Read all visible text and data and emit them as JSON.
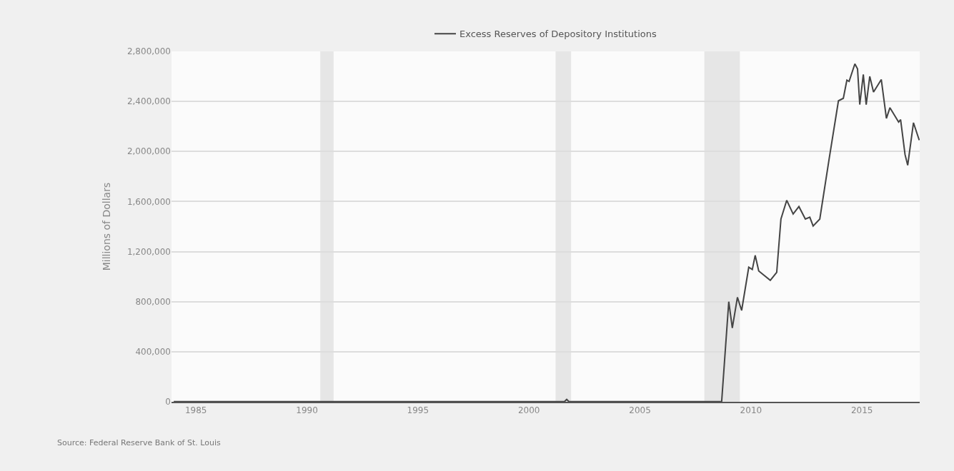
{
  "chart_data": {
    "type": "line",
    "ylabel": "Millions of Dollars",
    "annotations": [
      "Source: Federal Reserve Bank of St. Louis"
    ],
    "series": [
      {
        "name": "Excess Reserves of Depository Institutions",
        "color": "#444444",
        "x": [
          1984.0,
          1990.0,
          1995.0,
          2001.6,
          2001.7,
          2001.8,
          2005.0,
          2008.6,
          2008.68,
          2009.0,
          2009.16,
          2009.39,
          2009.58,
          2009.9,
          2010.06,
          2010.19,
          2010.35,
          2010.87,
          2011.16,
          2011.35,
          2011.61,
          2011.9,
          2012.16,
          2012.45,
          2012.65,
          2012.8,
          2013.1,
          2013.52,
          2013.94,
          2014.16,
          2014.32,
          2014.42,
          2014.68,
          2014.8,
          2014.9,
          2015.06,
          2015.19,
          2015.35,
          2015.52,
          2015.87,
          2016.1,
          2016.26,
          2016.65,
          2016.74,
          2016.94,
          2017.06,
          2017.32,
          2017.58
        ],
        "values": [
          1000,
          1000,
          1000,
          1500,
          19000,
          1500,
          1500,
          2000,
          2000,
          800000,
          590000,
          835000,
          730000,
          1075000,
          1057000,
          1170000,
          1045000,
          970000,
          1035000,
          1460000,
          1610000,
          1500000,
          1560000,
          1460000,
          1475000,
          1405000,
          1460000,
          1940000,
          2405000,
          2425000,
          2570000,
          2560000,
          2700000,
          2660000,
          2375000,
          2615000,
          2375000,
          2600000,
          2475000,
          2575000,
          2265000,
          2350000,
          2235000,
          2255000,
          1975000,
          1890000,
          2230000,
          2090000
        ]
      }
    ],
    "xlim": [
      1983.9,
      2017.6
    ],
    "xticks": [
      1985,
      1990,
      1995,
      2000,
      2005,
      2010,
      2015
    ],
    "ylim": [
      0,
      2800000
    ],
    "yticks": [
      0,
      {
        "value": 400000,
        "label": "400,000"
      },
      {
        "value": 800000,
        "label": "800,000"
      },
      {
        "value": 1200000,
        "label": "1,200,000"
      },
      {
        "value": 1600000,
        "label": "1,600,000"
      },
      {
        "value": 2000000,
        "label": "2,000,000"
      },
      {
        "value": 2400000,
        "label": "2,400,000"
      },
      {
        "value": 2800000,
        "label": "2,800,000"
      }
    ],
    "bands": [
      {
        "axis": "x",
        "from": 1990.6,
        "to": 1991.2,
        "color": "#e6e6e6"
      },
      {
        "axis": "x",
        "from": 2001.2,
        "to": 2001.9,
        "color": "#e6e6e6"
      },
      {
        "axis": "x",
        "from": 2007.9,
        "to": 2009.5,
        "color": "#e6e6e6"
      }
    ],
    "grid": "y",
    "legend": "top",
    "line_style": "solid",
    "marker": "none"
  }
}
